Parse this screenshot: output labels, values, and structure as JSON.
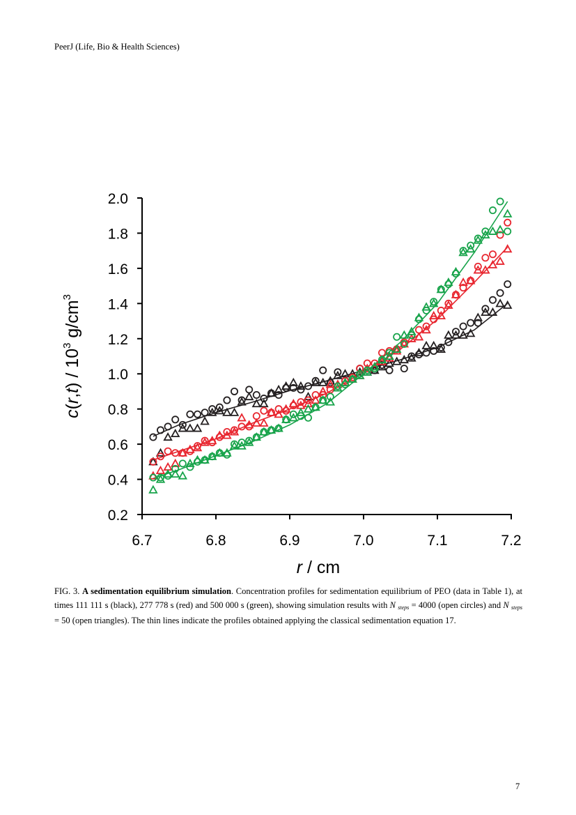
{
  "header": {
    "journal": "PeerJ (Life, Bio & Health Sciences)"
  },
  "page_number": "7",
  "chart_data": {
    "type": "scatter",
    "title": "",
    "xlabel_var": "r",
    "xlabel_unit": "/ cm",
    "ylabel": "c(r,t)  / 10^3 g/cm^3",
    "xlim": [
      6.7,
      7.2
    ],
    "ylim": [
      0.2,
      2.0
    ],
    "x_ticks": [
      "6.7",
      "6.8",
      "6.9",
      "7.0",
      "7.1",
      "7.2"
    ],
    "y_ticks": [
      "0.2",
      "0.4",
      "0.6",
      "0.8",
      "1.0",
      "1.2",
      "1.4",
      "1.6",
      "1.8",
      "2.0"
    ],
    "grid": false,
    "legend": "none",
    "colors": {
      "black": "#231f20",
      "red": "#e8262f",
      "green": "#17a34a"
    },
    "series": [
      {
        "color": "black",
        "marker": "circle",
        "x": [
          6.715,
          6.725,
          6.735,
          6.745,
          6.755,
          6.765,
          6.775,
          6.785,
          6.795,
          6.805,
          6.815,
          6.825,
          6.835,
          6.845,
          6.855,
          6.865,
          6.875,
          6.885,
          6.895,
          6.905,
          6.915,
          6.925,
          6.935,
          6.945,
          6.955,
          6.965,
          6.975,
          6.985,
          6.995,
          7.005,
          7.015,
          7.025,
          7.035,
          7.045,
          7.055,
          7.065,
          7.075,
          7.085,
          7.095,
          7.105,
          7.115,
          7.125,
          7.135,
          7.145,
          7.155,
          7.165,
          7.175,
          7.185,
          7.195
        ],
        "y": [
          0.64,
          0.68,
          0.7,
          0.74,
          0.71,
          0.77,
          0.77,
          0.78,
          0.8,
          0.81,
          0.85,
          0.9,
          0.85,
          0.91,
          0.88,
          0.86,
          0.89,
          0.88,
          0.92,
          0.92,
          0.91,
          0.93,
          0.96,
          1.02,
          0.95,
          1.01,
          0.96,
          0.97,
          1.03,
          1.02,
          1.02,
          1.05,
          1.02,
          1.14,
          1.03,
          1.1,
          1.11,
          1.12,
          1.13,
          1.15,
          1.18,
          1.24,
          1.27,
          1.29,
          1.29,
          1.37,
          1.42,
          1.46,
          1.51
        ]
      },
      {
        "color": "black",
        "marker": "triangle",
        "x": [
          6.715,
          6.725,
          6.735,
          6.745,
          6.755,
          6.765,
          6.775,
          6.785,
          6.795,
          6.805,
          6.815,
          6.825,
          6.835,
          6.845,
          6.855,
          6.865,
          6.875,
          6.885,
          6.895,
          6.905,
          6.915,
          6.925,
          6.935,
          6.945,
          6.955,
          6.965,
          6.975,
          6.985,
          6.995,
          7.005,
          7.015,
          7.025,
          7.035,
          7.045,
          7.055,
          7.065,
          7.075,
          7.085,
          7.095,
          7.105,
          7.115,
          7.125,
          7.135,
          7.145,
          7.155,
          7.165,
          7.175,
          7.185,
          7.195
        ],
        "y": [
          0.5,
          0.55,
          0.64,
          0.66,
          0.69,
          0.69,
          0.69,
          0.73,
          0.78,
          0.79,
          0.78,
          0.78,
          0.84,
          0.87,
          0.83,
          0.83,
          0.89,
          0.91,
          0.93,
          0.95,
          0.93,
          0.87,
          0.95,
          0.95,
          0.96,
          0.99,
          1.0,
          1.0,
          1.01,
          1.01,
          1.02,
          1.04,
          1.06,
          1.07,
          1.08,
          1.09,
          1.12,
          1.16,
          1.16,
          1.14,
          1.22,
          1.22,
          1.22,
          1.23,
          1.32,
          1.35,
          1.35,
          1.4,
          1.39
        ]
      },
      {
        "color": "red",
        "marker": "circle",
        "x": [
          6.715,
          6.725,
          6.735,
          6.745,
          6.755,
          6.765,
          6.775,
          6.785,
          6.795,
          6.805,
          6.815,
          6.825,
          6.835,
          6.845,
          6.855,
          6.865,
          6.875,
          6.885,
          6.895,
          6.905,
          6.915,
          6.925,
          6.935,
          6.945,
          6.955,
          6.965,
          6.975,
          6.985,
          6.995,
          7.005,
          7.015,
          7.025,
          7.035,
          7.045,
          7.055,
          7.065,
          7.075,
          7.085,
          7.095,
          7.105,
          7.115,
          7.125,
          7.135,
          7.145,
          7.155,
          7.165,
          7.175,
          7.185,
          7.195
        ],
        "y": [
          0.5,
          0.53,
          0.56,
          0.55,
          0.55,
          0.56,
          0.59,
          0.62,
          0.61,
          0.64,
          0.67,
          0.68,
          0.7,
          0.7,
          0.76,
          0.79,
          0.78,
          0.8,
          0.79,
          0.82,
          0.84,
          0.85,
          0.88,
          0.88,
          0.91,
          0.93,
          0.96,
          0.98,
          1.03,
          1.06,
          1.06,
          1.12,
          1.13,
          1.14,
          1.18,
          1.22,
          1.25,
          1.27,
          1.31,
          1.36,
          1.4,
          1.45,
          1.49,
          1.53,
          1.61,
          1.66,
          1.68,
          1.79,
          1.86
        ]
      },
      {
        "color": "red",
        "marker": "triangle",
        "x": [
          6.715,
          6.725,
          6.735,
          6.745,
          6.755,
          6.765,
          6.775,
          6.785,
          6.795,
          6.805,
          6.815,
          6.825,
          6.835,
          6.845,
          6.855,
          6.865,
          6.875,
          6.885,
          6.895,
          6.905,
          6.915,
          6.925,
          6.935,
          6.945,
          6.955,
          6.965,
          6.975,
          6.985,
          6.995,
          7.005,
          7.015,
          7.025,
          7.035,
          7.045,
          7.055,
          7.065,
          7.075,
          7.085,
          7.095,
          7.105,
          7.115,
          7.125,
          7.135,
          7.145,
          7.155,
          7.165,
          7.175,
          7.185,
          7.195
        ],
        "y": [
          0.42,
          0.45,
          0.47,
          0.49,
          0.55,
          0.57,
          0.58,
          0.61,
          0.62,
          0.65,
          0.65,
          0.67,
          0.75,
          0.71,
          0.72,
          0.72,
          0.78,
          0.77,
          0.8,
          0.83,
          0.82,
          0.83,
          0.85,
          0.9,
          0.94,
          0.94,
          0.95,
          0.97,
          0.99,
          1.03,
          1.04,
          1.07,
          1.09,
          1.13,
          1.17,
          1.2,
          1.21,
          1.25,
          1.33,
          1.33,
          1.39,
          1.45,
          1.52,
          1.53,
          1.59,
          1.59,
          1.62,
          1.64,
          1.71
        ]
      },
      {
        "color": "green",
        "marker": "circle",
        "x": [
          6.715,
          6.725,
          6.735,
          6.745,
          6.755,
          6.765,
          6.775,
          6.785,
          6.795,
          6.805,
          6.815,
          6.825,
          6.835,
          6.845,
          6.855,
          6.865,
          6.875,
          6.885,
          6.895,
          6.905,
          6.915,
          6.925,
          6.935,
          6.945,
          6.955,
          6.965,
          6.975,
          6.985,
          6.995,
          7.005,
          7.015,
          7.025,
          7.035,
          7.045,
          7.055,
          7.065,
          7.075,
          7.085,
          7.095,
          7.105,
          7.115,
          7.125,
          7.135,
          7.145,
          7.155,
          7.165,
          7.175,
          7.185,
          7.195
        ],
        "y": [
          0.41,
          0.41,
          0.42,
          0.46,
          0.49,
          0.47,
          0.5,
          0.51,
          0.53,
          0.55,
          0.54,
          0.6,
          0.61,
          0.62,
          0.64,
          0.67,
          0.68,
          0.69,
          0.74,
          0.77,
          0.76,
          0.75,
          0.81,
          0.85,
          0.87,
          0.93,
          0.94,
          0.97,
          1.0,
          1.02,
          1.03,
          1.08,
          1.12,
          1.21,
          1.17,
          1.22,
          1.31,
          1.36,
          1.41,
          1.48,
          1.51,
          1.57,
          1.7,
          1.73,
          1.77,
          1.81,
          1.93,
          1.98,
          1.81
        ]
      },
      {
        "color": "green",
        "marker": "triangle",
        "x": [
          6.715,
          6.725,
          6.735,
          6.745,
          6.755,
          6.765,
          6.775,
          6.785,
          6.795,
          6.805,
          6.815,
          6.825,
          6.835,
          6.845,
          6.855,
          6.865,
          6.875,
          6.885,
          6.895,
          6.905,
          6.915,
          6.925,
          6.935,
          6.945,
          6.955,
          6.965,
          6.975,
          6.985,
          6.995,
          7.005,
          7.015,
          7.025,
          7.035,
          7.045,
          7.055,
          7.065,
          7.075,
          7.085,
          7.095,
          7.105,
          7.115,
          7.125,
          7.135,
          7.145,
          7.155,
          7.165,
          7.175,
          7.185,
          7.195
        ],
        "y": [
          0.34,
          0.4,
          0.43,
          0.43,
          0.42,
          0.49,
          0.51,
          0.51,
          0.53,
          0.55,
          0.55,
          0.59,
          0.59,
          0.61,
          0.64,
          0.67,
          0.68,
          0.69,
          0.74,
          0.75,
          0.78,
          0.8,
          0.81,
          0.85,
          0.84,
          0.92,
          0.95,
          0.97,
          0.99,
          1.01,
          1.04,
          1.08,
          1.1,
          1.14,
          1.22,
          1.24,
          1.32,
          1.38,
          1.4,
          1.48,
          1.52,
          1.58,
          1.69,
          1.71,
          1.76,
          1.79,
          1.81,
          1.82,
          1.91
        ]
      }
    ],
    "fit_lines": [
      {
        "color": "black",
        "x": [
          6.715,
          6.75,
          6.8,
          6.85,
          6.9,
          6.95,
          7.0,
          7.05,
          7.1,
          7.15,
          7.195
        ],
        "y": [
          0.645,
          0.71,
          0.78,
          0.84,
          0.905,
          0.96,
          1.02,
          1.08,
          1.15,
          1.25,
          1.4
        ]
      },
      {
        "color": "red",
        "x": [
          6.715,
          6.75,
          6.8,
          6.85,
          6.9,
          6.95,
          7.0,
          7.05,
          7.1,
          7.15,
          7.195
        ],
        "y": [
          0.51,
          0.56,
          0.63,
          0.72,
          0.8,
          0.89,
          1.01,
          1.14,
          1.31,
          1.52,
          1.72
        ]
      },
      {
        "color": "green",
        "x": [
          6.715,
          6.75,
          6.8,
          6.85,
          6.9,
          6.95,
          7.0,
          7.05,
          7.1,
          7.15,
          7.195
        ],
        "y": [
          0.405,
          0.455,
          0.535,
          0.615,
          0.71,
          0.83,
          1.0,
          1.18,
          1.4,
          1.69,
          1.98
        ]
      }
    ]
  },
  "caption": {
    "label": "FIG. 3.",
    "title": "A sedimentation equilibrium simulation",
    "text_1": ".  Concentration profiles for sedimentation equilibrium of PEO (data in Table 1), at times 111 111 s (black), 277 778 s (red) and 500 000 s (green), showing simulation results with ",
    "n_var": "N",
    "steps_sub": "steps",
    "text_2": " = 4000 (open circles) and ",
    "text_3": " = 50 (open triangles).  The thin lines indicate the profiles obtained applying the classical sedimentation equation 17."
  }
}
